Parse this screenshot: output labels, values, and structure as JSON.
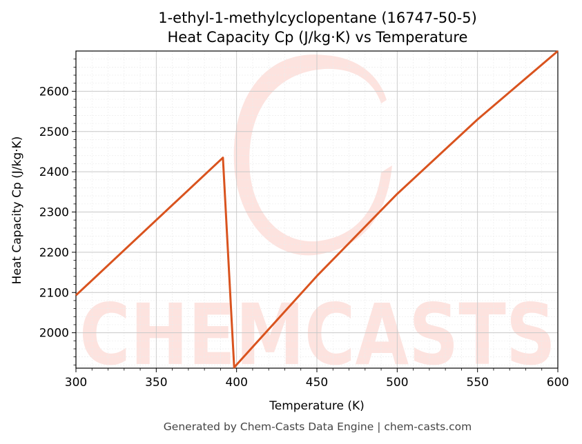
{
  "chart_data": {
    "type": "line",
    "title": [
      "1-ethyl-1-methylcyclopentane (16747-50-5)",
      "Heat Capacity Cp (J/kg·K) vs Temperature"
    ],
    "xlabel": "Temperature (K)",
    "ylabel": "Heat Capacity Cp (J/kg·K)",
    "xlim": [
      300,
      600
    ],
    "ylim": [
      1912,
      2700
    ],
    "xticks": [
      300,
      350,
      400,
      450,
      500,
      550,
      600
    ],
    "yticks": [
      2000,
      2100,
      2200,
      2300,
      2400,
      2500,
      2600
    ],
    "grid": true,
    "series": [
      {
        "color": "#d9531e",
        "x": [
          300,
          391.5,
          398.5,
          450,
          500,
          550,
          600
        ],
        "y": [
          2093,
          2435,
          1914,
          2141,
          2345,
          2530,
          2700
        ]
      }
    ]
  },
  "watermark": {
    "text": "CHEMCASTS",
    "color": "#fde0dc"
  },
  "footer": "Generated by Chem-Casts Data Engine | chem-casts.com"
}
